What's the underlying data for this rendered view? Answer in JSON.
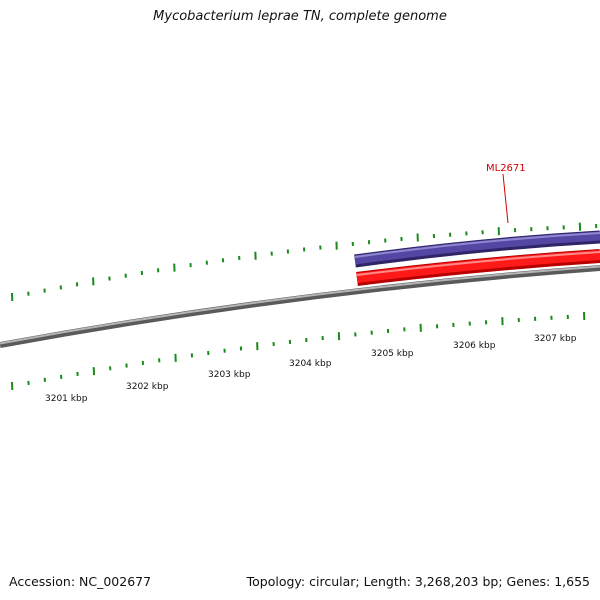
{
  "title": "Mycobacterium leprae TN, complete genome",
  "footer": {
    "accession": "Accession: NC_002677",
    "summary": "Topology: circular; Length: 3,268,203 bp; Genes: 1,655"
  },
  "colors": {
    "backbone": "#8a8a8a",
    "tick": "#1a8a1a",
    "gene_forward": "#4a3f96",
    "gene_reverse": "#ff1a1a",
    "gene_label": "#d40000"
  },
  "scale": {
    "tick_labels": [
      "3201 kbp",
      "3202 kbp",
      "3203 kbp",
      "3204 kbp",
      "3205 kbp",
      "3206 kbp",
      "3207 kbp"
    ]
  },
  "genes": [
    {
      "name": "ML2671",
      "strand": "forward"
    },
    {
      "name": "",
      "strand": "reverse"
    }
  ]
}
